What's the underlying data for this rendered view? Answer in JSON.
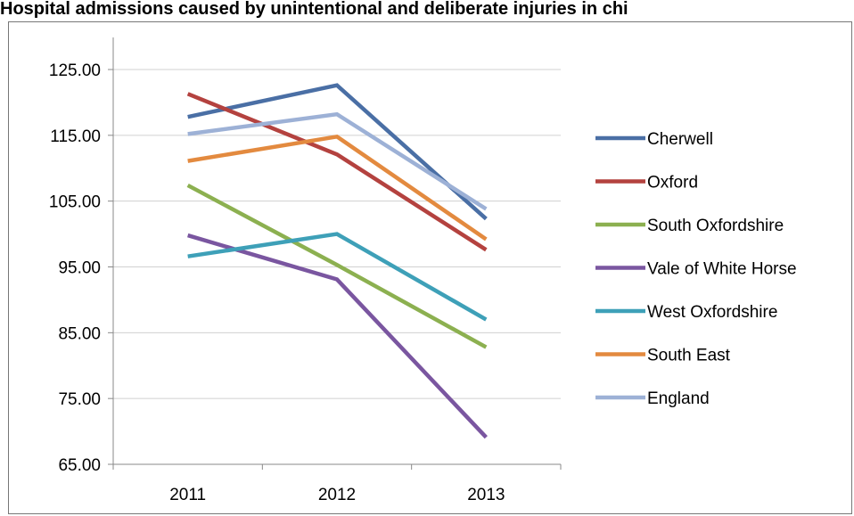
{
  "title": "Hospital admissions  caused by unintentional and deliberate injuries in chi",
  "chart_data": {
    "type": "line",
    "title": "Hospital admissions  caused by unintentional and deliberate injuries in chi",
    "xlabel": "",
    "ylabel": "",
    "categories": [
      "2011",
      "2012",
      "2013"
    ],
    "ylim": [
      65,
      125
    ],
    "yticks": [
      "125.00",
      "115.00",
      "105.00",
      "95.00",
      "85.00",
      "75.00",
      "65.00"
    ],
    "grid": "horizontal",
    "legend_position": "right",
    "series": [
      {
        "name": "Cherwell",
        "color": "#4a6fa5",
        "values": [
          117.8,
          122.6,
          102.3
        ]
      },
      {
        "name": "Oxford",
        "color": "#b4423f",
        "values": [
          121.3,
          112.1,
          97.6
        ]
      },
      {
        "name": "South Oxfordshire",
        "color": "#8cb050",
        "values": [
          107.4,
          95.3,
          82.8
        ]
      },
      {
        "name": "Vale of White Horse",
        "color": "#7a56a0",
        "values": [
          99.8,
          93.1,
          69.1
        ]
      },
      {
        "name": "West Oxfordshire",
        "color": "#3ea0b8",
        "values": [
          96.6,
          100.0,
          87.0
        ]
      },
      {
        "name": "South East",
        "color": "#e38a3f",
        "values": [
          111.1,
          114.8,
          99.2
        ]
      },
      {
        "name": "England",
        "color": "#9db1d6",
        "values": [
          115.2,
          118.2,
          103.8
        ]
      }
    ]
  }
}
